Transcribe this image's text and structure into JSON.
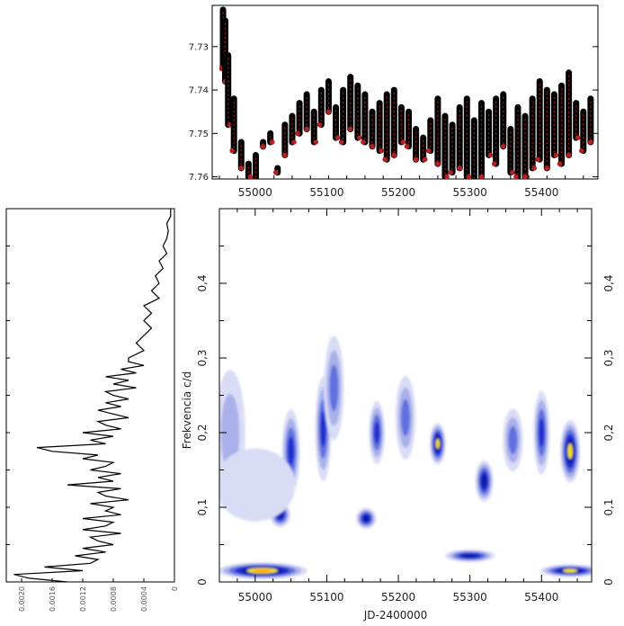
{
  "chart_data": [
    {
      "type": "scatter",
      "panel": "light-curve",
      "xlim": [
        54950,
        55470
      ],
      "ylim": [
        7.7605,
        7.7205
      ],
      "y_inverted": true,
      "y_ticks": [
        "7.73",
        "7.74",
        "7.75",
        "7.76"
      ],
      "y_tick_values": [
        7.73,
        7.74,
        7.75,
        7.76
      ],
      "x": [
        54955,
        54958,
        54962,
        54970,
        54980,
        54990,
        55000,
        55010,
        55020,
        55030,
        55040,
        55050,
        55060,
        55070,
        55080,
        55090,
        55100,
        55110,
        55120,
        55130,
        55140,
        55150,
        55160,
        55170,
        55180,
        55190,
        55200,
        55210,
        55220,
        55230,
        55240,
        55250,
        55260,
        55270,
        55280,
        55290,
        55300,
        55310,
        55320,
        55330,
        55340,
        55350,
        55360,
        55370,
        55380,
        55390,
        55400,
        55410,
        55420,
        55430,
        55440,
        55450,
        55460
      ],
      "y_min": [
        7.7215,
        7.724,
        7.732,
        7.742,
        7.752,
        7.757,
        7.755,
        7.752,
        7.75,
        7.758,
        7.748,
        7.746,
        7.743,
        7.741,
        7.745,
        7.74,
        7.738,
        7.744,
        7.74,
        7.737,
        7.739,
        7.741,
        7.745,
        7.743,
        7.741,
        7.74,
        7.744,
        7.745,
        7.749,
        7.751,
        7.747,
        7.742,
        7.746,
        7.748,
        7.744,
        7.742,
        7.747,
        7.743,
        7.745,
        7.742,
        7.741,
        7.749,
        7.744,
        7.746,
        7.742,
        7.738,
        7.74,
        7.741,
        7.739,
        7.736,
        7.743,
        7.745,
        7.742
      ],
      "y_max": [
        7.735,
        7.738,
        7.748,
        7.754,
        7.758,
        7.76,
        7.761,
        7.753,
        7.752,
        7.759,
        7.755,
        7.752,
        7.75,
        7.749,
        7.752,
        7.748,
        7.745,
        7.751,
        7.752,
        7.749,
        7.751,
        7.752,
        7.753,
        7.754,
        7.756,
        7.755,
        7.752,
        7.753,
        7.756,
        7.756,
        7.754,
        7.757,
        7.76,
        7.759,
        7.758,
        7.76,
        7.761,
        7.76,
        7.755,
        7.757,
        7.753,
        7.759,
        7.76,
        7.76,
        7.758,
        7.756,
        7.758,
        7.755,
        7.757,
        7.755,
        7.751,
        7.754,
        7.752
      ],
      "marker_color": "#000000",
      "highlight_color": "#b22222"
    },
    {
      "type": "line",
      "panel": "periodogram",
      "orientation": "vertical",
      "xlim": [
        0,
        0.0022
      ],
      "x_ticks": [
        "0.0020",
        "0.0016",
        "0.0012",
        "0.0008",
        "0.0004",
        "0"
      ],
      "x_tick_values": [
        0.002,
        0.0016,
        0.0012,
        0.0008,
        0.0004,
        0
      ],
      "ylim": [
        0,
        0.5
      ],
      "frequency": [
        0.0,
        0.005,
        0.01,
        0.015,
        0.02,
        0.025,
        0.03,
        0.035,
        0.04,
        0.045,
        0.05,
        0.055,
        0.06,
        0.065,
        0.07,
        0.075,
        0.08,
        0.085,
        0.09,
        0.095,
        0.1,
        0.105,
        0.11,
        0.115,
        0.12,
        0.125,
        0.13,
        0.135,
        0.14,
        0.145,
        0.15,
        0.155,
        0.16,
        0.165,
        0.17,
        0.175,
        0.18,
        0.185,
        0.19,
        0.195,
        0.2,
        0.205,
        0.21,
        0.215,
        0.22,
        0.225,
        0.23,
        0.235,
        0.24,
        0.245,
        0.25,
        0.255,
        0.26,
        0.265,
        0.27,
        0.275,
        0.28,
        0.285,
        0.29,
        0.295,
        0.3,
        0.31,
        0.32,
        0.33,
        0.34,
        0.35,
        0.36,
        0.37,
        0.38,
        0.39,
        0.4,
        0.41,
        0.42,
        0.43,
        0.44,
        0.45,
        0.46,
        0.47,
        0.48,
        0.49,
        0.5
      ],
      "power": [
        0.0014,
        0.0019,
        0.0021,
        0.0012,
        0.0017,
        0.0011,
        0.001,
        0.0013,
        0.0009,
        0.0012,
        0.0008,
        0.001,
        0.0011,
        0.0007,
        0.0012,
        0.0009,
        0.0008,
        0.0012,
        0.0007,
        0.0009,
        0.0008,
        0.0011,
        0.0006,
        0.0009,
        0.001,
        0.0007,
        0.0014,
        0.0008,
        0.001,
        0.0007,
        0.0011,
        0.0009,
        0.0008,
        0.0012,
        0.001,
        0.0016,
        0.0018,
        0.0009,
        0.0011,
        0.0008,
        0.0012,
        0.0007,
        0.0009,
        0.001,
        0.0006,
        0.0008,
        0.001,
        0.0007,
        0.0009,
        0.0006,
        0.0008,
        0.0009,
        0.0005,
        0.0008,
        0.0006,
        0.0009,
        0.0005,
        0.0007,
        0.0004,
        0.0006,
        0.0006,
        0.0004,
        0.0005,
        0.0004,
        0.0003,
        0.0004,
        0.0003,
        0.0004,
        0.0002,
        0.0003,
        0.0002,
        0.00025,
        0.00015,
        0.0002,
        0.0001,
        0.00015,
        0.0001,
        8e-05,
        0.0001,
        5e-05,
        5e-05
      ],
      "line_color": "#000000"
    },
    {
      "type": "heatmap",
      "panel": "wavelet",
      "xlabel": "JD-2400000",
      "ylabel": "Frekvencia c/d",
      "xlim": [
        54950,
        55470
      ],
      "ylim": [
        0,
        0.5
      ],
      "x_ticks": [
        "55000",
        "55100",
        "55200",
        "55300",
        "55400"
      ],
      "x_tick_values": [
        55000,
        55100,
        55200,
        55300,
        55400
      ],
      "y_ticks": [
        "0",
        "0,1",
        "0,2",
        "0,3",
        "0,4"
      ],
      "y_tick_values": [
        0,
        0.1,
        0.2,
        0.3,
        0.4
      ],
      "color_scale": [
        "#ffffff",
        "#d9dcf5",
        "#a9b0ea",
        "#5f6fe0",
        "#1a2fd0",
        "#0a1aa0",
        "#f3e300",
        "#ffb000"
      ],
      "features": [
        {
          "x": 55010,
          "y": 0.015,
          "sx": 45,
          "sy": 0.008,
          "level": 7
        },
        {
          "x": 55300,
          "y": 0.035,
          "sx": 25,
          "sy": 0.006,
          "level": 5
        },
        {
          "x": 55440,
          "y": 0.015,
          "sx": 30,
          "sy": 0.006,
          "level": 6
        },
        {
          "x": 55035,
          "y": 0.09,
          "sx": 10,
          "sy": 0.012,
          "level": 5
        },
        {
          "x": 55155,
          "y": 0.085,
          "sx": 10,
          "sy": 0.01,
          "level": 5
        },
        {
          "x": 55255,
          "y": 0.185,
          "sx": 8,
          "sy": 0.02,
          "level": 6
        },
        {
          "x": 55440,
          "y": 0.175,
          "sx": 10,
          "sy": 0.03,
          "level": 6
        },
        {
          "x": 55320,
          "y": 0.135,
          "sx": 9,
          "sy": 0.02,
          "level": 5
        },
        {
          "x": 55095,
          "y": 0.205,
          "sx": 8,
          "sy": 0.05,
          "level": 4
        },
        {
          "x": 55170,
          "y": 0.2,
          "sx": 8,
          "sy": 0.03,
          "level": 4
        },
        {
          "x": 55400,
          "y": 0.2,
          "sx": 8,
          "sy": 0.04,
          "level": 4
        },
        {
          "x": 55050,
          "y": 0.175,
          "sx": 9,
          "sy": 0.04,
          "level": 4
        },
        {
          "x": 55110,
          "y": 0.26,
          "sx": 10,
          "sy": 0.05,
          "level": 3
        },
        {
          "x": 55210,
          "y": 0.22,
          "sx": 10,
          "sy": 0.04,
          "level": 3
        },
        {
          "x": 55360,
          "y": 0.19,
          "sx": 10,
          "sy": 0.03,
          "level": 3
        },
        {
          "x": 54965,
          "y": 0.2,
          "sx": 15,
          "sy": 0.06,
          "level": 2
        },
        {
          "x": 55000,
          "y": 0.13,
          "sx": 40,
          "sy": 0.035,
          "level": 1
        }
      ]
    }
  ]
}
